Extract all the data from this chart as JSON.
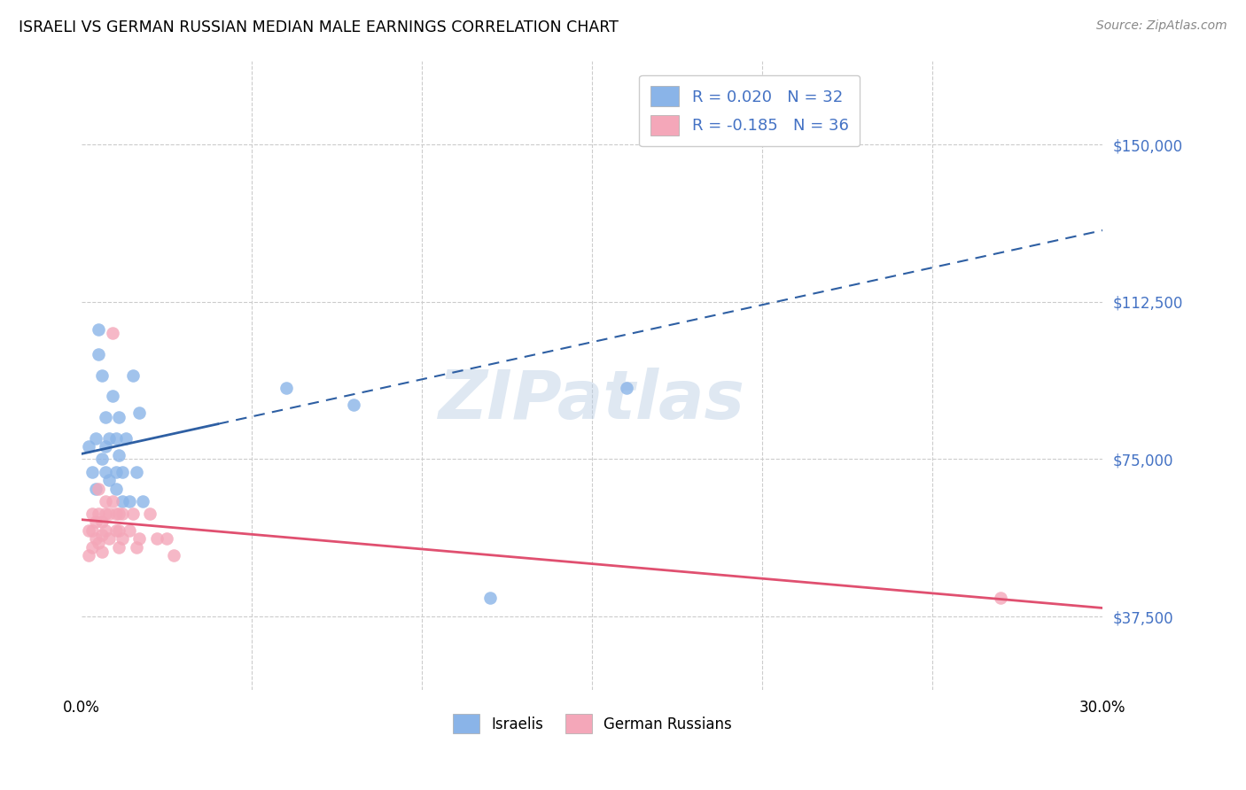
{
  "title": "ISRAELI VS GERMAN RUSSIAN MEDIAN MALE EARNINGS CORRELATION CHART",
  "source": "Source: ZipAtlas.com",
  "ylabel": "Median Male Earnings",
  "yticks": [
    37500,
    75000,
    112500,
    150000
  ],
  "ytick_labels": [
    "$37,500",
    "$75,000",
    "$112,500",
    "$150,000"
  ],
  "xmin": 0.0,
  "xmax": 0.3,
  "ymin": 20000,
  "ymax": 170000,
  "israeli_color": "#8ab4e8",
  "german_russian_color": "#f4a7b9",
  "israeli_line_color": "#2e5fa3",
  "german_russian_line_color": "#e05070",
  "legend_label_1": "R = 0.020   N = 32",
  "legend_label_2": "R = -0.185   N = 36",
  "legend_label_israelis": "Israelis",
  "legend_label_german_russians": "German Russians",
  "watermark": "ZIPatlas",
  "israelis_x": [
    0.002,
    0.003,
    0.004,
    0.004,
    0.005,
    0.005,
    0.006,
    0.006,
    0.007,
    0.007,
    0.007,
    0.008,
    0.008,
    0.009,
    0.01,
    0.01,
    0.01,
    0.011,
    0.011,
    0.012,
    0.012,
    0.013,
    0.014,
    0.015,
    0.016,
    0.017,
    0.018,
    0.06,
    0.08,
    0.12,
    0.16,
    0.22
  ],
  "israelis_y": [
    78000,
    72000,
    68000,
    80000,
    100000,
    106000,
    95000,
    75000,
    85000,
    78000,
    72000,
    80000,
    70000,
    90000,
    80000,
    72000,
    68000,
    76000,
    85000,
    72000,
    65000,
    80000,
    65000,
    95000,
    72000,
    86000,
    65000,
    92000,
    88000,
    42000,
    92000,
    155000
  ],
  "german_russians_x": [
    0.002,
    0.002,
    0.003,
    0.003,
    0.003,
    0.004,
    0.004,
    0.005,
    0.005,
    0.005,
    0.006,
    0.006,
    0.006,
    0.007,
    0.007,
    0.007,
    0.008,
    0.008,
    0.009,
    0.009,
    0.01,
    0.01,
    0.011,
    0.011,
    0.011,
    0.012,
    0.012,
    0.014,
    0.015,
    0.016,
    0.017,
    0.02,
    0.022,
    0.025,
    0.027,
    0.27
  ],
  "german_russians_y": [
    58000,
    52000,
    62000,
    58000,
    54000,
    60000,
    56000,
    68000,
    62000,
    55000,
    60000,
    57000,
    53000,
    65000,
    62000,
    58000,
    62000,
    56000,
    105000,
    65000,
    62000,
    58000,
    62000,
    58000,
    54000,
    62000,
    56000,
    58000,
    62000,
    54000,
    56000,
    62000,
    56000,
    56000,
    52000,
    42000
  ]
}
